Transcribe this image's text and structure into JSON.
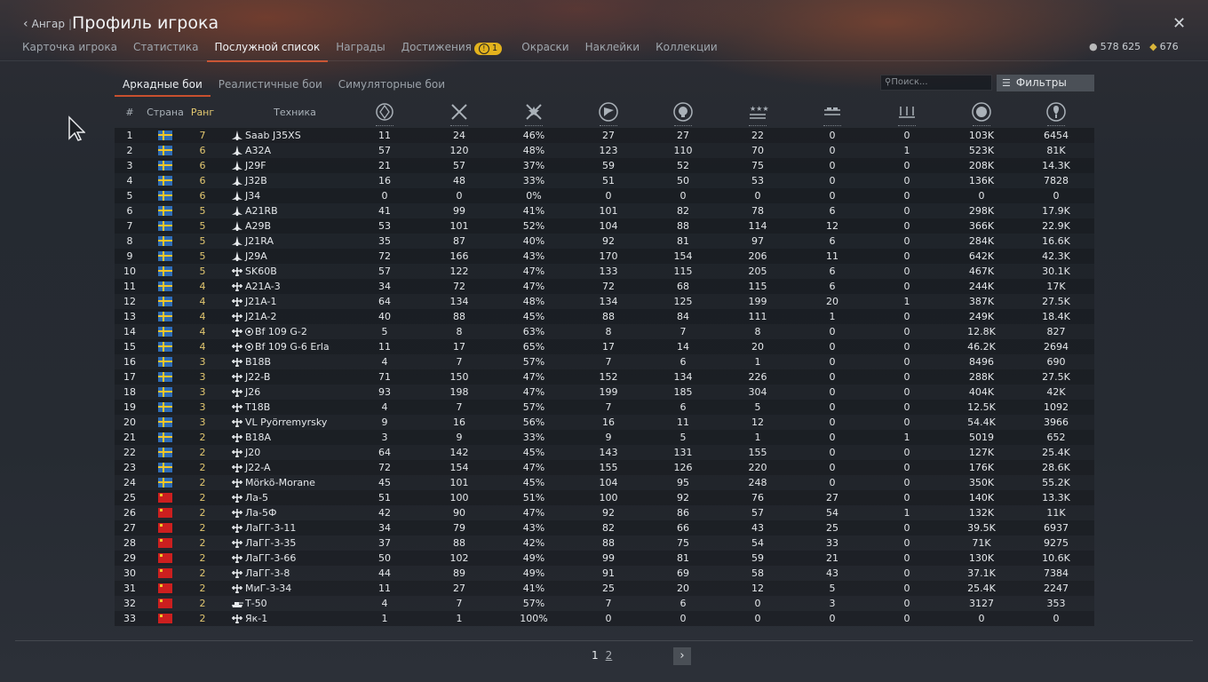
{
  "header": {
    "back_label": "Ангар",
    "title": "Профиль игрока"
  },
  "tabs": [
    {
      "label": "Карточка игрока"
    },
    {
      "label": "Статистика"
    },
    {
      "label": "Послужной список",
      "active": true
    },
    {
      "label": "Награды"
    },
    {
      "label": "Достижения",
      "badge": "1"
    },
    {
      "label": "Окраски"
    },
    {
      "label": "Наклейки"
    },
    {
      "label": "Коллекции"
    }
  ],
  "currency": {
    "silver": "578 625",
    "gold": "676"
  },
  "modes": [
    {
      "label": "Аркадные бои",
      "active": true
    },
    {
      "label": "Реалистичные бои"
    },
    {
      "label": "Симуляторные бои"
    }
  ],
  "search": {
    "placeholder": "Поиск..."
  },
  "filters_label": "Фильтры",
  "columns": {
    "num": "#",
    "country": "Страна",
    "rank": "Ранг",
    "vehicle": "Техника"
  },
  "stat_icons": [
    "battles-icon",
    "respawns-icon",
    "victories-icon",
    "flag-capture-icon",
    "deaths-icon",
    "air-kills-icon",
    "ground-kills-icon",
    "naval-kills-icon",
    "silver-lions-icon",
    "research-points-icon"
  ],
  "rows": [
    {
      "n": "1",
      "country": "se",
      "rank": "7",
      "icon": "jet",
      "name": "Saab J35XS",
      "cross": false,
      "v": [
        "11",
        "24",
        "46%",
        "27",
        "27",
        "22",
        "0",
        "0",
        "103K",
        "6454"
      ]
    },
    {
      "n": "2",
      "country": "se",
      "rank": "6",
      "icon": "jet",
      "name": "A32A",
      "cross": false,
      "v": [
        "57",
        "120",
        "48%",
        "123",
        "110",
        "70",
        "0",
        "1",
        "523K",
        "81K"
      ]
    },
    {
      "n": "3",
      "country": "se",
      "rank": "6",
      "icon": "jet",
      "name": "J29F",
      "cross": false,
      "v": [
        "21",
        "57",
        "37%",
        "59",
        "52",
        "75",
        "0",
        "0",
        "208K",
        "14.3K"
      ]
    },
    {
      "n": "4",
      "country": "se",
      "rank": "6",
      "icon": "jet",
      "name": "J32B",
      "cross": false,
      "v": [
        "16",
        "48",
        "33%",
        "51",
        "50",
        "53",
        "0",
        "0",
        "136K",
        "7828"
      ]
    },
    {
      "n": "5",
      "country": "se",
      "rank": "6",
      "icon": "jet",
      "name": "J34",
      "cross": false,
      "v": [
        "0",
        "0",
        "0%",
        "0",
        "0",
        "0",
        "0",
        "0",
        "0",
        "0"
      ]
    },
    {
      "n": "6",
      "country": "se",
      "rank": "5",
      "icon": "jet",
      "name": "A21RB",
      "cross": false,
      "v": [
        "41",
        "99",
        "41%",
        "101",
        "82",
        "78",
        "6",
        "0",
        "298K",
        "17.9K"
      ]
    },
    {
      "n": "7",
      "country": "se",
      "rank": "5",
      "icon": "jet",
      "name": "A29B",
      "cross": false,
      "v": [
        "53",
        "101",
        "52%",
        "104",
        "88",
        "114",
        "12",
        "0",
        "366K",
        "22.9K"
      ]
    },
    {
      "n": "8",
      "country": "se",
      "rank": "5",
      "icon": "jet",
      "name": "J21RA",
      "cross": false,
      "v": [
        "35",
        "87",
        "40%",
        "92",
        "81",
        "97",
        "6",
        "0",
        "284K",
        "16.6K"
      ]
    },
    {
      "n": "9",
      "country": "se",
      "rank": "5",
      "icon": "jet",
      "name": "J29A",
      "cross": false,
      "v": [
        "72",
        "166",
        "43%",
        "170",
        "154",
        "206",
        "11",
        "0",
        "642K",
        "42.3K"
      ]
    },
    {
      "n": "10",
      "country": "se",
      "rank": "5",
      "icon": "prop",
      "name": "SK60B",
      "cross": false,
      "v": [
        "57",
        "122",
        "47%",
        "133",
        "115",
        "205",
        "6",
        "0",
        "467K",
        "30.1K"
      ]
    },
    {
      "n": "11",
      "country": "se",
      "rank": "4",
      "icon": "prop",
      "name": "A21A-3",
      "cross": false,
      "v": [
        "34",
        "72",
        "47%",
        "72",
        "68",
        "115",
        "6",
        "0",
        "244K",
        "17K"
      ]
    },
    {
      "n": "12",
      "country": "se",
      "rank": "4",
      "icon": "prop",
      "name": "J21A-1",
      "cross": false,
      "v": [
        "64",
        "134",
        "48%",
        "134",
        "125",
        "199",
        "20",
        "1",
        "387K",
        "27.5K"
      ]
    },
    {
      "n": "13",
      "country": "se",
      "rank": "4",
      "icon": "prop",
      "name": "J21A-2",
      "cross": false,
      "v": [
        "40",
        "88",
        "45%",
        "88",
        "84",
        "111",
        "1",
        "0",
        "249K",
        "18.4K"
      ]
    },
    {
      "n": "14",
      "country": "se",
      "rank": "4",
      "icon": "prop",
      "name": "Bf 109 G-2",
      "cross": true,
      "v": [
        "5",
        "8",
        "63%",
        "8",
        "7",
        "8",
        "0",
        "0",
        "12.8K",
        "827"
      ]
    },
    {
      "n": "15",
      "country": "se",
      "rank": "4",
      "icon": "prop",
      "name": "Bf 109 G-6 Erla",
      "cross": true,
      "v": [
        "11",
        "17",
        "65%",
        "17",
        "14",
        "20",
        "0",
        "0",
        "46.2K",
        "2694"
      ]
    },
    {
      "n": "16",
      "country": "se",
      "rank": "3",
      "icon": "prop",
      "name": "B18B",
      "cross": false,
      "v": [
        "4",
        "7",
        "57%",
        "7",
        "6",
        "1",
        "0",
        "0",
        "8496",
        "690"
      ]
    },
    {
      "n": "17",
      "country": "se",
      "rank": "3",
      "icon": "prop",
      "name": "J22-B",
      "cross": false,
      "v": [
        "71",
        "150",
        "47%",
        "152",
        "134",
        "226",
        "0",
        "0",
        "288K",
        "27.5K"
      ]
    },
    {
      "n": "18",
      "country": "se",
      "rank": "3",
      "icon": "prop",
      "name": "J26",
      "cross": false,
      "v": [
        "93",
        "198",
        "47%",
        "199",
        "185",
        "304",
        "0",
        "0",
        "404K",
        "42K"
      ]
    },
    {
      "n": "19",
      "country": "se",
      "rank": "3",
      "icon": "prop",
      "name": "T18B",
      "cross": false,
      "v": [
        "4",
        "7",
        "57%",
        "7",
        "6",
        "5",
        "0",
        "0",
        "12.5K",
        "1092"
      ]
    },
    {
      "n": "20",
      "country": "se",
      "rank": "3",
      "icon": "prop",
      "name": "VL Pyörremyrsky",
      "cross": false,
      "v": [
        "9",
        "16",
        "56%",
        "16",
        "11",
        "12",
        "0",
        "0",
        "54.4K",
        "3966"
      ]
    },
    {
      "n": "21",
      "country": "se",
      "rank": "2",
      "icon": "prop",
      "name": "B18A",
      "cross": false,
      "v": [
        "3",
        "9",
        "33%",
        "9",
        "5",
        "1",
        "0",
        "1",
        "5019",
        "652"
      ]
    },
    {
      "n": "22",
      "country": "se",
      "rank": "2",
      "icon": "prop",
      "name": "J20",
      "cross": false,
      "v": [
        "64",
        "142",
        "45%",
        "143",
        "131",
        "155",
        "0",
        "0",
        "127K",
        "25.4K"
      ]
    },
    {
      "n": "23",
      "country": "se",
      "rank": "2",
      "icon": "prop",
      "name": "J22-A",
      "cross": false,
      "v": [
        "72",
        "154",
        "47%",
        "155",
        "126",
        "220",
        "0",
        "0",
        "176K",
        "28.6K"
      ]
    },
    {
      "n": "24",
      "country": "se",
      "rank": "2",
      "icon": "prop",
      "name": "Mörkö-Morane",
      "cross": false,
      "v": [
        "45",
        "101",
        "45%",
        "104",
        "95",
        "248",
        "0",
        "0",
        "350K",
        "55.2K"
      ]
    },
    {
      "n": "25",
      "country": "ussr",
      "rank": "2",
      "icon": "prop",
      "name": "Ла-5",
      "cross": false,
      "v": [
        "51",
        "100",
        "51%",
        "100",
        "92",
        "76",
        "27",
        "0",
        "140K",
        "13.3K"
      ]
    },
    {
      "n": "26",
      "country": "ussr",
      "rank": "2",
      "icon": "prop",
      "name": "Ла-5Ф",
      "cross": false,
      "v": [
        "42",
        "90",
        "47%",
        "92",
        "86",
        "57",
        "54",
        "1",
        "132K",
        "11K"
      ]
    },
    {
      "n": "27",
      "country": "ussr",
      "rank": "2",
      "icon": "prop",
      "name": "ЛаГГ-3-11",
      "cross": false,
      "v": [
        "34",
        "79",
        "43%",
        "82",
        "66",
        "43",
        "25",
        "0",
        "39.5K",
        "6937"
      ]
    },
    {
      "n": "28",
      "country": "ussr",
      "rank": "2",
      "icon": "prop",
      "name": "ЛаГГ-3-35",
      "cross": false,
      "v": [
        "37",
        "88",
        "42%",
        "88",
        "75",
        "54",
        "33",
        "0",
        "71K",
        "9275"
      ]
    },
    {
      "n": "29",
      "country": "ussr",
      "rank": "2",
      "icon": "prop",
      "name": "ЛаГГ-3-66",
      "cross": false,
      "v": [
        "50",
        "102",
        "49%",
        "99",
        "81",
        "59",
        "21",
        "0",
        "130K",
        "10.6K"
      ]
    },
    {
      "n": "30",
      "country": "ussr",
      "rank": "2",
      "icon": "prop",
      "name": "ЛаГГ-3-8",
      "cross": false,
      "v": [
        "44",
        "89",
        "49%",
        "91",
        "69",
        "58",
        "43",
        "0",
        "37.1K",
        "7384"
      ]
    },
    {
      "n": "31",
      "country": "ussr",
      "rank": "2",
      "icon": "prop",
      "name": "МиГ-3-34",
      "cross": false,
      "v": [
        "11",
        "27",
        "41%",
        "25",
        "20",
        "12",
        "5",
        "0",
        "25.4K",
        "2247"
      ]
    },
    {
      "n": "32",
      "country": "ussr",
      "rank": "2",
      "icon": "tank",
      "name": "Т-50",
      "cross": false,
      "v": [
        "4",
        "7",
        "57%",
        "7",
        "6",
        "0",
        "3",
        "0",
        "3127",
        "353"
      ]
    },
    {
      "n": "33",
      "country": "ussr",
      "rank": "2",
      "icon": "prop",
      "name": "Як-1",
      "cross": false,
      "v": [
        "1",
        "1",
        "100%",
        "0",
        "0",
        "0",
        "0",
        "0",
        "0",
        "0"
      ]
    }
  ],
  "pagination": {
    "current": "1",
    "next": "2"
  }
}
